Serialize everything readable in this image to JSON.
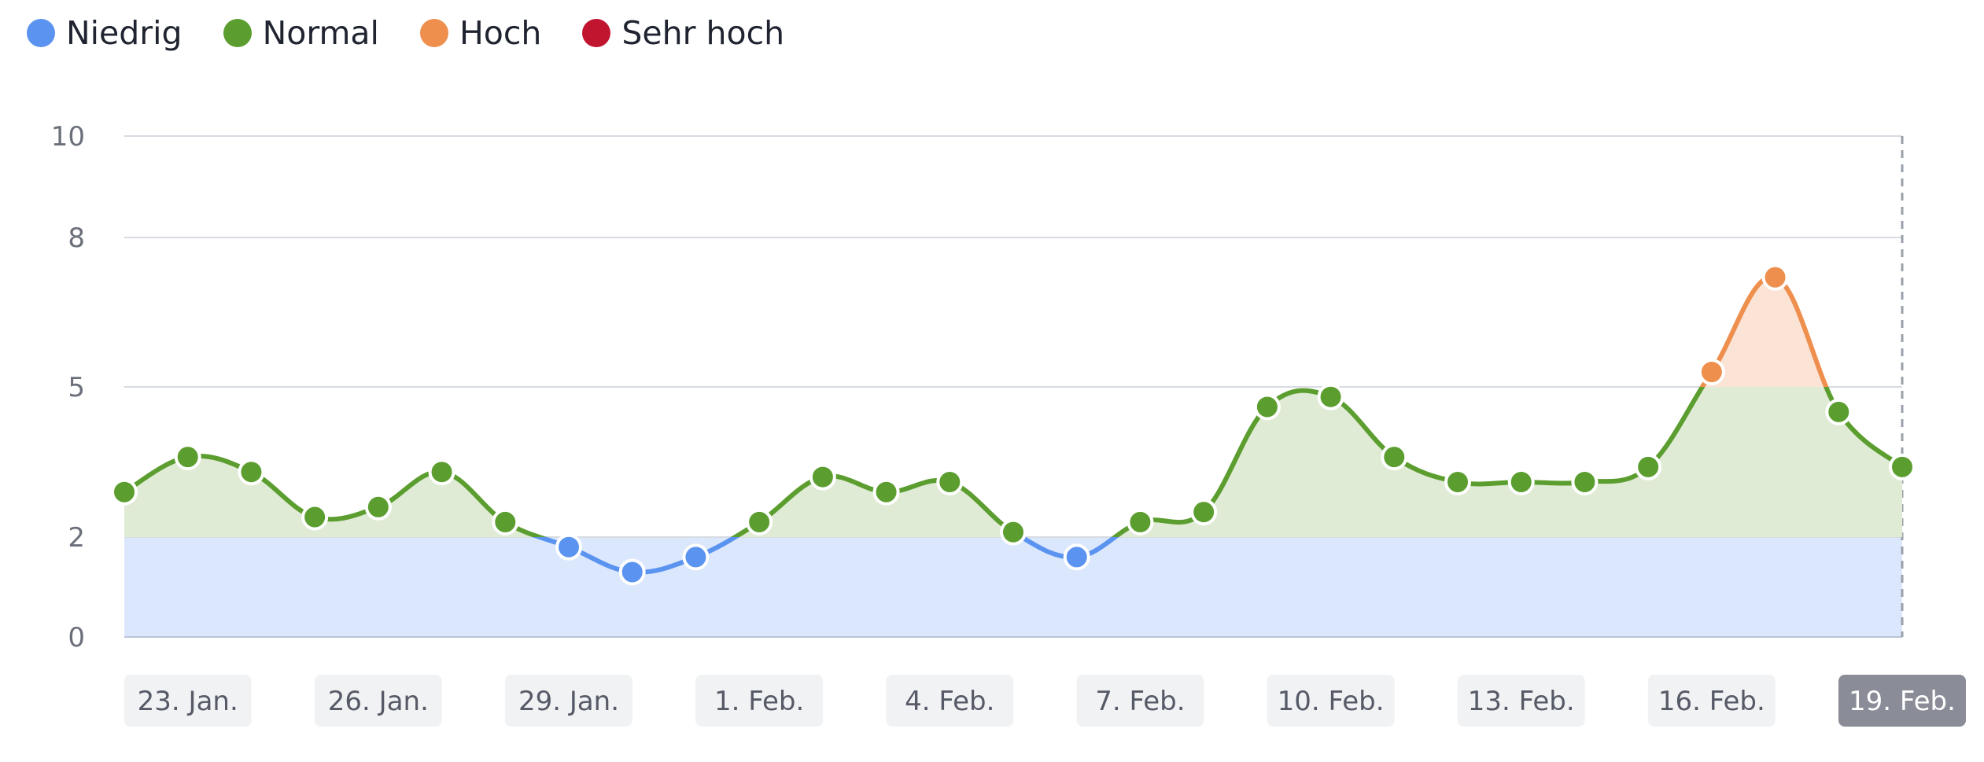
{
  "legend": [
    {
      "label": "Niedrig",
      "color": "#5a93f0"
    },
    {
      "label": "Normal",
      "color": "#5b9e2f"
    },
    {
      "label": "Hoch",
      "color": "#ee8f4e"
    },
    {
      "label": "Sehr hoch",
      "color": "#c0142f"
    }
  ],
  "chart_data": {
    "type": "line",
    "series": [
      {
        "name": "",
        "x": [
          "22. Jan.",
          "23. Jan.",
          "24. Jan.",
          "25. Jan.",
          "26. Jan.",
          "27. Jan.",
          "28. Jan.",
          "29. Jan.",
          "30. Jan.",
          "31. Jan.",
          "1. Feb.",
          "2. Feb.",
          "3. Feb.",
          "4. Feb.",
          "5. Feb.",
          "6. Feb.",
          "7. Feb.",
          "8. Feb.",
          "9. Feb.",
          "10. Feb.",
          "11. Feb.",
          "12. Feb.",
          "13. Feb.",
          "14. Feb.",
          "15. Feb.",
          "16. Feb.",
          "17. Feb.",
          "18. Feb.",
          "19. Feb."
        ],
        "values": [
          2.9,
          3.6,
          3.3,
          2.4,
          2.6,
          3.3,
          2.3,
          1.8,
          1.3,
          1.6,
          2.3,
          3.2,
          2.9,
          3.1,
          2.1,
          1.6,
          2.3,
          2.5,
          4.6,
          4.8,
          3.6,
          3.1,
          3.1,
          3.1,
          3.4,
          5.3,
          7.2,
          4.5,
          3.4
        ]
      }
    ],
    "bands": [
      {
        "label": "Niedrig",
        "from": 0,
        "to": 2
      },
      {
        "label": "Normal",
        "from": 2,
        "to": 5
      },
      {
        "label": "Hoch",
        "from": 5,
        "to": 8
      },
      {
        "label": "Sehr hoch",
        "from": 8,
        "to": 10
      }
    ],
    "xticks": [
      "23. Jan.",
      "26. Jan.",
      "29. Jan.",
      "1. Feb.",
      "4. Feb.",
      "7. Feb.",
      "10. Feb.",
      "13. Feb.",
      "16. Feb.",
      "19. Feb."
    ],
    "active_xtick": "19. Feb.",
    "yticks": [
      "0",
      "2",
      "5",
      "8",
      "10"
    ],
    "ylim": [
      0,
      10
    ],
    "grid": true,
    "legend_position": "top-left",
    "title": "",
    "xlabel": "",
    "ylabel": ""
  }
}
